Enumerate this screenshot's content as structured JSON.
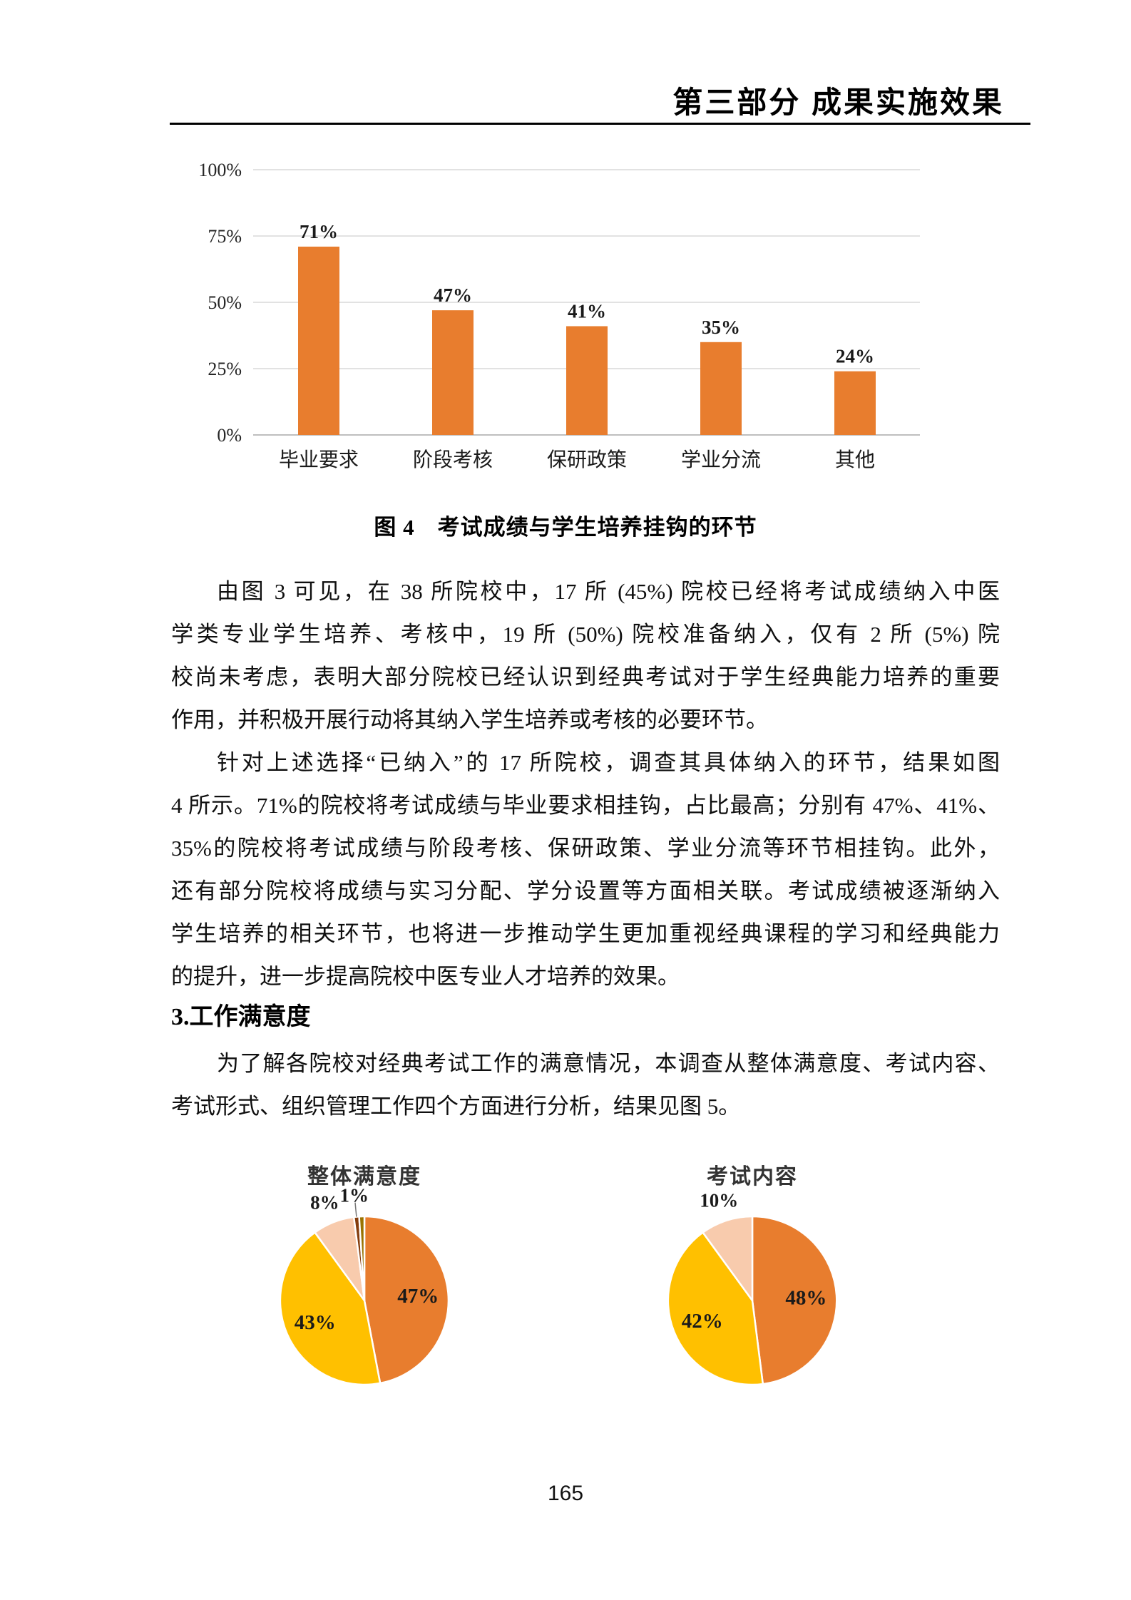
{
  "header": {
    "title": "第三部分 成果实施效果"
  },
  "figure4": {
    "caption": "图 4　考试成绩与学生培养挂钩的环节"
  },
  "body": {
    "p1": [
      "由图 3 可见，在 38 所院校中，17 所 (45%) 院校已经将考试成绩纳入中医",
      "学类专业学生培养、考核中，19 所 (50%) 院校准备纳入，仅有 2 所 (5%) 院",
      "校尚未考虑，表明大部分院校已经认识到经典考试对于学生经典能力培养的重要",
      "作用，并积极开展行动将其纳入学生培养或考核的必要环节。"
    ],
    "p2": [
      "针对上述选择“已纳入”的 17 所院校，调查其具体纳入的环节，结果如图",
      "4 所示。71%的院校将考试成绩与毕业要求相挂钩，占比最高；分别有 47%、41%、",
      "35%的院校将考试成绩与阶段考核、保研政策、学业分流等环节相挂钩。此外，",
      "还有部分院校将成绩与实习分配、学分设置等方面相关联。考试成绩被逐渐纳入",
      "学生培养的相关环节，也将进一步推动学生更加重视经典课程的学习和经典能力",
      "的提升，进一步提高院校中医专业人才培养的效果。"
    ],
    "heading": "3.工作满意度",
    "p3": [
      "为了解各院校对经典考试工作的满意情况，本调查从整体满意度、考试内容、",
      "考试形式、组织管理工作四个方面进行分析，结果见图 5。"
    ]
  },
  "chart_data": [
    {
      "type": "bar",
      "title": "图 4　考试成绩与学生培养挂钩的环节",
      "categories": [
        "毕业要求",
        "阶段考核",
        "保研政策",
        "学业分流",
        "其他"
      ],
      "values": [
        71,
        47,
        41,
        35,
        24
      ],
      "data_labels": [
        "71%",
        "47%",
        "41%",
        "35%",
        "24%"
      ],
      "ylim": [
        0,
        100
      ],
      "yticks": [
        "0%",
        "25%",
        "50%",
        "75%",
        "100%"
      ],
      "grid": true,
      "color": "#E87D2E",
      "grid_color": "#D9D9D9",
      "axis_color": "#BFBFBF"
    },
    {
      "type": "pie",
      "title": "整体满意度",
      "slices": [
        {
          "label": "47%",
          "value": 47,
          "color": "#E87D2E",
          "label_pos": "inside"
        },
        {
          "label": "43%",
          "value": 43,
          "color": "#FFC000",
          "label_pos": "inside"
        },
        {
          "label": "8%",
          "value": 8,
          "color": "#F8CBAD",
          "label_pos": "outside"
        },
        {
          "label": "1%",
          "value": 1,
          "color": "#843C0C",
          "label_pos": "outside"
        },
        {
          "label": "",
          "value": 1,
          "color": "#997300",
          "label_pos": "none"
        }
      ]
    },
    {
      "type": "pie",
      "title": "考试内容",
      "slices": [
        {
          "label": "48%",
          "value": 48,
          "color": "#E87D2E",
          "label_pos": "inside"
        },
        {
          "label": "42%",
          "value": 42,
          "color": "#FFC000",
          "label_pos": "inside"
        },
        {
          "label": "10%",
          "value": 10,
          "color": "#F8CBAD",
          "label_pos": "outside"
        }
      ]
    }
  ],
  "page": {
    "number": "165"
  }
}
